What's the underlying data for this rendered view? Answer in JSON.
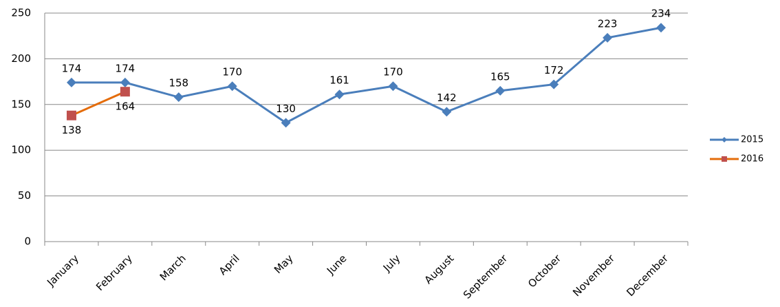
{
  "chart_data": {
    "type": "line",
    "categories": [
      "January",
      "February",
      "March",
      "April",
      "May",
      "June",
      "July",
      "August",
      "September",
      "October",
      "November",
      "December"
    ],
    "series": [
      {
        "name": "2015",
        "color": "#4a7ebb",
        "marker": "diamond",
        "marker_color": "#4a7ebb",
        "label_position": "above",
        "values": [
          174,
          174,
          158,
          170,
          130,
          161,
          170,
          142,
          165,
          172,
          223,
          234
        ]
      },
      {
        "name": "2016",
        "color": "#e46c0a",
        "marker": "square",
        "marker_color": "#c0504d",
        "label_position": "below",
        "values": [
          138,
          164,
          null,
          null,
          null,
          null,
          null,
          null,
          null,
          null,
          null,
          null
        ]
      }
    ],
    "ylim": [
      0,
      250
    ],
    "yticks": [
      0,
      50,
      100,
      150,
      200,
      250
    ],
    "grid": true,
    "legend": "right"
  }
}
